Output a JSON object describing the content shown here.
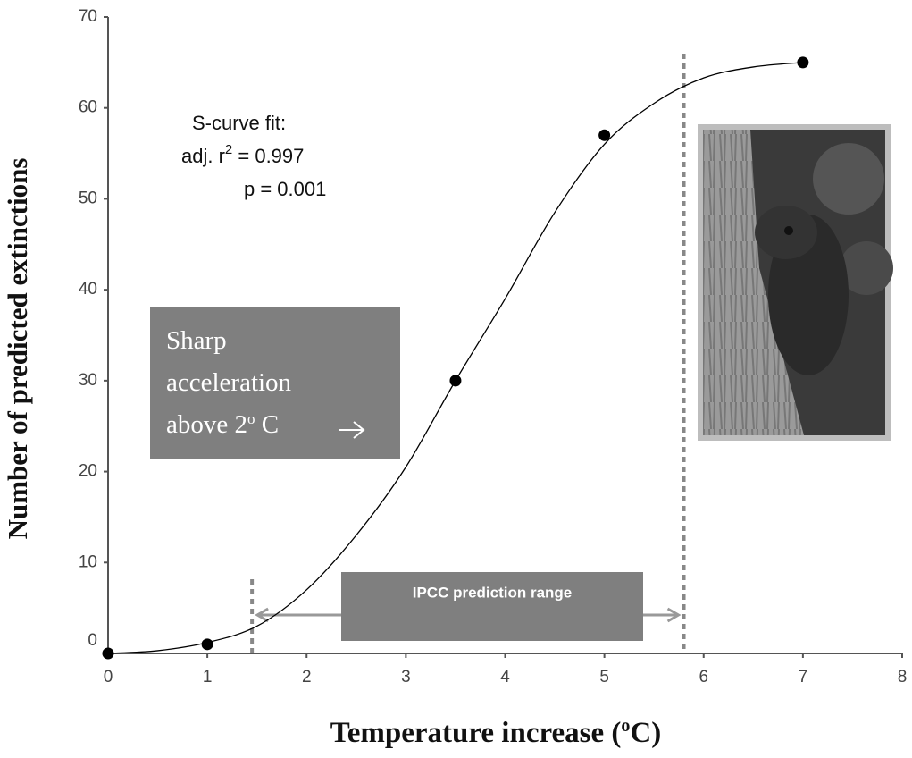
{
  "chart_data": {
    "type": "scatter",
    "xlabel": [
      "Temperature increase (",
      "o",
      "C)"
    ],
    "ylabel": "Number of predicted extinctions",
    "xlim": [
      0,
      8
    ],
    "ylim": [
      0,
      70
    ],
    "xticks": [
      0,
      1,
      2,
      3,
      4,
      5,
      6,
      7,
      8
    ],
    "yticks": [
      0,
      10,
      20,
      30,
      40,
      50,
      60,
      70
    ],
    "x": [
      0,
      1,
      3.5,
      5,
      7
    ],
    "values": [
      0,
      1,
      30,
      57,
      65
    ],
    "color": "#000000",
    "fit": {
      "x": [
        0,
        0.5,
        1,
        1.5,
        2,
        2.5,
        3,
        3.5,
        4,
        4.5,
        5,
        5.5,
        6,
        6.5,
        7
      ],
      "values": [
        0,
        0.3,
        1.2,
        3,
        7,
        13,
        20.5,
        30,
        39,
        48.5,
        56,
        60.5,
        63.3,
        64.5,
        65
      ],
      "color": "#000000"
    },
    "fit_text": {
      "line1": "S-curve fit:",
      "line2": [
        "adj. r",
        "2",
        " = 0.997"
      ],
      "line3": "p = 0.001"
    },
    "callout": {
      "lines": [
        "Sharp",
        "acceleration"
      ],
      "line3": [
        "above 2",
        "o",
        " C"
      ]
    },
    "ipcc_range": {
      "label": "IPCC prediction range",
      "x": [
        1.45,
        5.8
      ]
    }
  }
}
